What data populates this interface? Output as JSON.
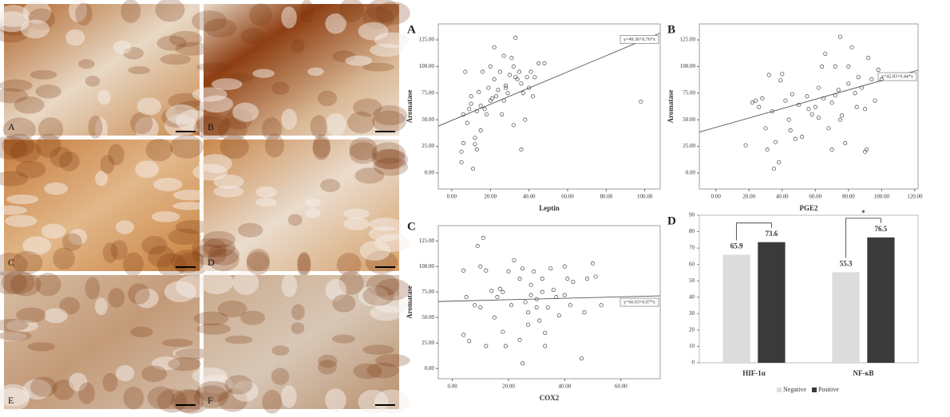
{
  "micrographs": {
    "labels": [
      "A",
      "B",
      "C",
      "D",
      "E",
      "F"
    ]
  },
  "chart_data": [
    {
      "type": "scatter",
      "panel": "A",
      "x_label": "Leptin",
      "y_label": "Aromatase",
      "xlim": [
        -7,
        108
      ],
      "ylim": [
        -15,
        140
      ],
      "xticks": [
        {
          "value": 0,
          "label": "0.00"
        },
        {
          "value": 20,
          "label": "20.00"
        },
        {
          "value": 40,
          "label": "40.00"
        },
        {
          "value": 60,
          "label": "60.00"
        },
        {
          "value": 80,
          "label": "80.00"
        },
        {
          "value": 100,
          "label": "100.00"
        }
      ],
      "yticks": [
        {
          "value": 0,
          "label": "0.00"
        },
        {
          "value": 25,
          "label": "25.00"
        },
        {
          "value": 50,
          "label": "50.00"
        },
        {
          "value": 75,
          "label": "75.00"
        },
        {
          "value": 100,
          "label": "100.00"
        },
        {
          "value": 125,
          "label": "125.00"
        }
      ],
      "fit": {
        "intercept": 49.36,
        "slope": 0.76,
        "label": "y=49.36+0.76*x"
      },
      "x": [
        5,
        5,
        6,
        6,
        7,
        8,
        9,
        10,
        10,
        11,
        12,
        12,
        13,
        13,
        14,
        15,
        16,
        17,
        18,
        19,
        20,
        21,
        22,
        23,
        24,
        25,
        26,
        27,
        28,
        29,
        30,
        31,
        32,
        32,
        33,
        33,
        34,
        35,
        36,
        36,
        37,
        38,
        39,
        40,
        41,
        42,
        43,
        45,
        48,
        98,
        20,
        27,
        15,
        22,
        28
      ],
      "values": [
        10,
        20,
        28,
        55,
        95,
        47,
        60,
        65,
        72,
        4,
        27,
        33,
        22,
        58,
        76,
        63,
        95,
        60,
        55,
        80,
        68,
        70,
        88,
        72,
        78,
        95,
        55,
        68,
        82,
        75,
        92,
        108,
        100,
        45,
        90,
        127,
        88,
        95,
        22,
        84,
        75,
        50,
        90,
        80,
        95,
        72,
        90,
        103,
        103,
        67,
        100,
        110,
        40,
        118,
        80
      ]
    },
    {
      "type": "scatter",
      "panel": "B",
      "x_label": "PGE2",
      "y_label": "Aromatase",
      "xlim": [
        -10,
        122
      ],
      "ylim": [
        -15,
        140
      ],
      "xticks": [
        {
          "value": 0,
          "label": "0.00"
        },
        {
          "value": 20,
          "label": "20.00"
        },
        {
          "value": 40,
          "label": "40.00"
        },
        {
          "value": 60,
          "label": "60.00"
        },
        {
          "value": 80,
          "label": "80.00"
        },
        {
          "value": 100,
          "label": "100.00"
        },
        {
          "value": 120,
          "label": "120.00"
        }
      ],
      "yticks": [
        {
          "value": 0,
          "label": "0.00"
        },
        {
          "value": 25,
          "label": "25.00"
        },
        {
          "value": 50,
          "label": "50.00"
        },
        {
          "value": 75,
          "label": "75.00"
        },
        {
          "value": 100,
          "label": "100.00"
        },
        {
          "value": 125,
          "label": "125.00"
        }
      ],
      "fit": {
        "intercept": 42.83,
        "slope": 0.44,
        "label": "y=42.83+0.44*x"
      },
      "x": [
        18,
        22,
        24,
        26,
        28,
        30,
        31,
        32,
        34,
        35,
        36,
        38,
        39,
        40,
        42,
        44,
        45,
        46,
        48,
        50,
        52,
        55,
        56,
        58,
        60,
        62,
        62,
        64,
        65,
        66,
        68,
        70,
        70,
        72,
        72,
        74,
        75,
        75,
        76,
        78,
        80,
        80,
        82,
        84,
        85,
        86,
        88,
        90,
        90,
        91,
        92,
        94,
        96,
        98,
        100
      ],
      "values": [
        26,
        66,
        68,
        62,
        70,
        42,
        22,
        92,
        58,
        4,
        29,
        10,
        87,
        93,
        68,
        50,
        40,
        74,
        32,
        64,
        34,
        72,
        60,
        55,
        62,
        80,
        52,
        100,
        70,
        112,
        42,
        66,
        22,
        100,
        73,
        78,
        50,
        128,
        54,
        28,
        84,
        100,
        118,
        75,
        62,
        90,
        80,
        20,
        60,
        22,
        108,
        88,
        68,
        97,
        88
      ]
    },
    {
      "type": "scatter",
      "panel": "C",
      "x_label": "COX2",
      "y_label": "Aromatase",
      "xlim": [
        -5,
        74
      ],
      "ylim": [
        -10,
        140
      ],
      "xticks": [
        {
          "value": 0,
          "label": "0.00"
        },
        {
          "value": 20,
          "label": "20.00"
        },
        {
          "value": 40,
          "label": "40.00"
        },
        {
          "value": 60,
          "label": "60.00"
        }
      ],
      "yticks": [
        {
          "value": 0,
          "label": "0.00"
        },
        {
          "value": 25,
          "label": "25.00"
        },
        {
          "value": 50,
          "label": "50.00"
        },
        {
          "value": 75,
          "label": "75.00"
        },
        {
          "value": 100,
          "label": "100.00"
        },
        {
          "value": 125,
          "label": "125.00"
        }
      ],
      "fit": {
        "intercept": 66.03,
        "slope": 0.07,
        "label": "y=66.03+0.07*x"
      },
      "x": [
        4,
        4,
        5,
        6,
        8,
        9,
        10,
        10,
        11,
        12,
        12,
        14,
        15,
        16,
        17,
        18,
        18,
        19,
        20,
        21,
        22,
        24,
        24,
        25,
        25,
        26,
        27,
        27,
        28,
        28,
        29,
        30,
        30,
        31,
        32,
        32,
        33,
        33,
        34,
        35,
        36,
        37,
        38,
        40,
        40,
        41,
        42,
        43,
        46,
        47,
        48,
        50,
        51,
        53
      ],
      "values": [
        96,
        33,
        70,
        27,
        62,
        120,
        100,
        60,
        128,
        96,
        22,
        76,
        50,
        70,
        78,
        36,
        75,
        22,
        95,
        62,
        106,
        28,
        88,
        98,
        5,
        65,
        55,
        43,
        82,
        72,
        95,
        68,
        60,
        47,
        88,
        75,
        35,
        22,
        60,
        98,
        77,
        70,
        52,
        72,
        100,
        88,
        62,
        85,
        10,
        55,
        88,
        103,
        90,
        62
      ]
    },
    {
      "type": "bar",
      "panel": "D",
      "categories": [
        "HIF-1α",
        "NF-κB"
      ],
      "ylim": [
        0,
        90
      ],
      "yticks": [
        0,
        10,
        20,
        30,
        40,
        50,
        60,
        70,
        80,
        90
      ],
      "annotation": "*",
      "series": [
        {
          "name": "Negative",
          "color": "#dcdcdc",
          "values": [
            65.9,
            55.3
          ]
        },
        {
          "name": "Positive",
          "color": "#3a3a3a",
          "values": [
            73.6,
            76.5
          ]
        }
      ]
    }
  ]
}
